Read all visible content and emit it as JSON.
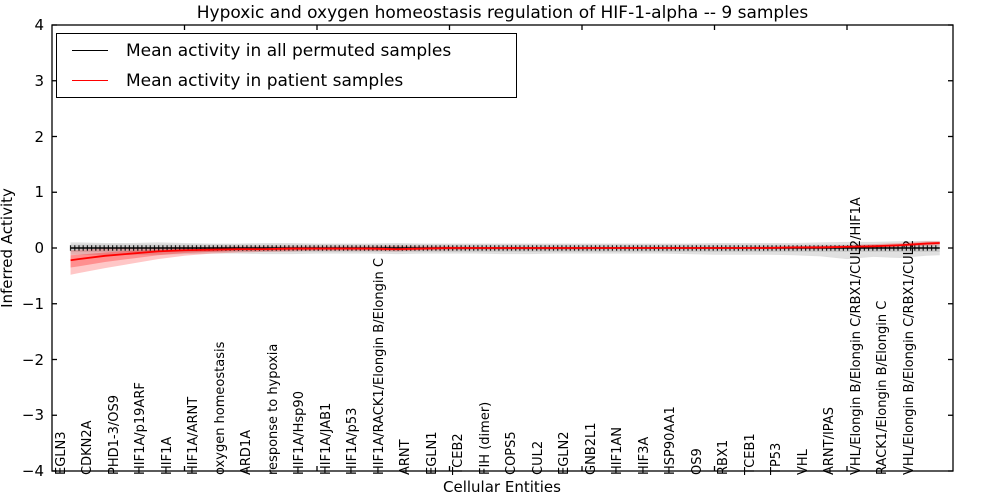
{
  "title": "Hypoxic and oxygen homeostasis regulation of HIF-1-alpha -- 9 samples",
  "axes": {
    "ylabel": "Inferred Activity",
    "xlabel": "Cellular Entities",
    "ytick_labels": [
      "4",
      "3",
      "2",
      "1",
      "0",
      "−1",
      "−2",
      "−3",
      "−4"
    ],
    "ytick_values": [
      4,
      3,
      2,
      1,
      0,
      -1,
      -2,
      -3,
      -4
    ]
  },
  "legend": {
    "items": [
      {
        "label": "Mean activity in all permuted samples",
        "color": "#000000"
      },
      {
        "label": "Mean activity in patient samples",
        "color": "#ff0000"
      }
    ]
  },
  "chart_data": {
    "type": "line",
    "title": "Hypoxic and oxygen homeostasis regulation of HIF-1-alpha -- 9 samples",
    "xlabel": "Cellular Entities",
    "ylabel": "Inferred Activity",
    "ylim": [
      -4,
      4
    ],
    "xlim": [
      0,
      34
    ],
    "x_major_ticks": [
      5,
      10,
      15,
      20,
      25,
      30
    ],
    "legend_position": "upper left",
    "grid": false,
    "categories": [
      "EGLN3",
      "CDKN2A",
      "PHD1-3/OS9",
      "HIF1A/p19ARF",
      "HIF1A",
      "HIF1A/ARNT",
      "oxygen homeostasis",
      "ARD1A",
      "response to hypoxia",
      "HIF1A/Hsp90",
      "HIF1A/JAB1",
      "HIF1A/p53",
      "HIF1A/RACK1/Elongin B/Elongin C",
      "ARNT",
      "EGLN1",
      "TCEB2",
      "FIH (dimer)",
      "COPS5",
      "CUL2",
      "EGLN2",
      "GNB2L1",
      "HIF1AN",
      "HIF3A",
      "HSP90AA1",
      "OS9",
      "RBX1",
      "TCEB1",
      "TP53",
      "VHL",
      "ARNT/IPAS",
      "VHL/Elongin B/Elongin C/RBX1/CUL2/HIF1A",
      "RACK1/Elongin B/Elongin C",
      "VHL/Elongin B/Elongin C/RBX1/CUL2"
    ],
    "x": [
      0.7,
      1,
      2,
      3,
      4,
      5,
      6,
      7,
      8,
      9,
      10,
      11,
      12,
      13,
      14,
      15,
      16,
      17,
      18,
      19,
      20,
      21,
      22,
      23,
      24,
      25,
      26,
      27,
      28,
      29,
      30,
      31,
      32,
      33,
      33.5
    ],
    "series": [
      {
        "name": "Mean activity in all permuted samples",
        "color": "#000000",
        "width": 1.6,
        "marker": "vertical-dash",
        "values": [
          0,
          0,
          0,
          0,
          0,
          0,
          0,
          0,
          0,
          0,
          0,
          0,
          0,
          0,
          0,
          0,
          0,
          0,
          0,
          0,
          0,
          0,
          0,
          0,
          0,
          0,
          0,
          0,
          0,
          0,
          0,
          0,
          0,
          0,
          0
        ]
      },
      {
        "name": "Mean activity in patient samples",
        "color": "#ff0000",
        "width": 1.8,
        "marker": "none",
        "values": [
          -0.22,
          -0.2,
          -0.14,
          -0.1,
          -0.06,
          -0.04,
          -0.03,
          -0.02,
          -0.02,
          -0.01,
          -0.01,
          -0.01,
          -0.01,
          -0.02,
          -0.01,
          0,
          0,
          0,
          0,
          0,
          0,
          0,
          0,
          0,
          0,
          0,
          0,
          0,
          0.01,
          0.01,
          0.02,
          0.03,
          0.05,
          0.08,
          0.09
        ]
      }
    ],
    "bands": [
      {
        "name": "gray-band-outer",
        "color": "#000000",
        "opacity": 0.12,
        "high": [
          0.1,
          0.1,
          0.09,
          0.09,
          0.1,
          0.09,
          0.08,
          0.08,
          0.09,
          0.09,
          0.08,
          0.08,
          0.08,
          0.09,
          0.08,
          0.08,
          0.08,
          0.08,
          0.08,
          0.08,
          0.08,
          0.08,
          0.08,
          0.08,
          0.08,
          0.09,
          0.09,
          0.09,
          0.09,
          0.1,
          0.11,
          0.11,
          0.12,
          0.13,
          0.13
        ],
        "low": [
          -0.12,
          -0.12,
          -0.13,
          -0.12,
          -0.12,
          -0.11,
          -0.1,
          -0.1,
          -0.11,
          -0.11,
          -0.1,
          -0.1,
          -0.1,
          -0.11,
          -0.1,
          -0.1,
          -0.1,
          -0.11,
          -0.11,
          -0.1,
          -0.1,
          -0.1,
          -0.1,
          -0.1,
          -0.11,
          -0.12,
          -0.12,
          -0.12,
          -0.13,
          -0.15,
          -0.2,
          -0.16,
          -0.18,
          -0.14,
          -0.13
        ]
      },
      {
        "name": "gray-band-inner",
        "color": "#000000",
        "opacity": 0.1,
        "high": [
          0.06,
          0.06,
          0.06,
          0.06,
          0.06,
          0.06,
          0.06,
          0.06,
          0.06,
          0.06,
          0.06,
          0.06,
          0.06,
          0.06,
          0.06,
          0.06,
          0.06,
          0.06,
          0.06,
          0.06,
          0.06,
          0.06,
          0.06,
          0.06,
          0.06,
          0.06,
          0.06,
          0.06,
          0.06,
          0.06,
          0.06,
          0.06,
          0.06,
          0.06,
          0.06
        ],
        "low": [
          -0.07,
          -0.07,
          -0.07,
          -0.07,
          -0.07,
          -0.07,
          -0.07,
          -0.07,
          -0.07,
          -0.07,
          -0.07,
          -0.07,
          -0.07,
          -0.07,
          -0.07,
          -0.07,
          -0.07,
          -0.07,
          -0.07,
          -0.07,
          -0.07,
          -0.07,
          -0.07,
          -0.07,
          -0.07,
          -0.07,
          -0.07,
          -0.07,
          -0.07,
          -0.07,
          -0.07,
          -0.07,
          -0.07,
          -0.07,
          -0.07
        ]
      },
      {
        "name": "red-band-outer",
        "color": "#ff0000",
        "opacity": 0.22,
        "high": [
          -0.04,
          -0.03,
          -0.01,
          0.0,
          0.01,
          0.02,
          0.02,
          0.03,
          0.03,
          0.03,
          0.03,
          0.03,
          0.03,
          0.04,
          0.03,
          0.03,
          0.02,
          0.02,
          0.02,
          0.02,
          0.02,
          0.02,
          0.02,
          0.02,
          0.02,
          0.02,
          0.02,
          0.03,
          0.03,
          0.04,
          0.05,
          0.07,
          0.09,
          0.12,
          0.12
        ],
        "low": [
          -0.48,
          -0.45,
          -0.36,
          -0.28,
          -0.2,
          -0.14,
          -0.1,
          -0.08,
          -0.07,
          -0.06,
          -0.05,
          -0.05,
          -0.05,
          -0.06,
          -0.04,
          -0.04,
          -0.03,
          -0.03,
          -0.03,
          -0.03,
          -0.03,
          -0.02,
          -0.02,
          -0.02,
          -0.02,
          -0.02,
          -0.02,
          -0.02,
          -0.02,
          -0.02,
          -0.01,
          0.0,
          0.02,
          0.04,
          0.05
        ]
      },
      {
        "name": "red-band-inner",
        "color": "#ff0000",
        "opacity": 0.28,
        "high": [
          -0.13,
          -0.12,
          -0.08,
          -0.05,
          -0.03,
          -0.01,
          0.0,
          0.01,
          0.01,
          0.01,
          0.01,
          0.01,
          0.01,
          0.01,
          0.01,
          0.02,
          0.01,
          0.01,
          0.01,
          0.01,
          0.01,
          0.01,
          0.01,
          0.01,
          0.01,
          0.01,
          0.01,
          0.02,
          0.02,
          0.03,
          0.04,
          0.05,
          0.07,
          0.1,
          0.11
        ],
        "low": [
          -0.35,
          -0.33,
          -0.25,
          -0.19,
          -0.13,
          -0.09,
          -0.07,
          -0.05,
          -0.05,
          -0.04,
          -0.03,
          -0.03,
          -0.03,
          -0.04,
          -0.03,
          -0.02,
          -0.02,
          -0.02,
          -0.02,
          -0.02,
          -0.02,
          -0.01,
          -0.01,
          -0.01,
          -0.01,
          -0.01,
          -0.01,
          -0.01,
          -0.01,
          -0.01,
          0.01,
          0.02,
          0.04,
          0.06,
          0.07
        ]
      }
    ]
  }
}
